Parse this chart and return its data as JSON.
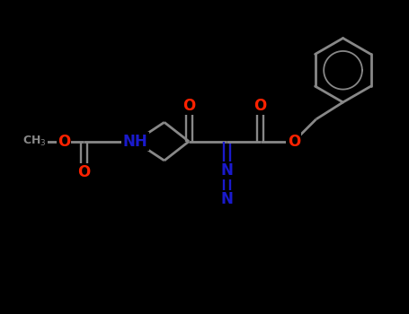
{
  "bg": "#000000",
  "bc": "#888888",
  "oc": "#ff2200",
  "nc": "#1a1acc",
  "lw": 2.0,
  "fs": 12,
  "fss": 9,
  "fig_w": 4.55,
  "fig_h": 3.5,
  "dpi": 100,
  "xlim": [
    0,
    9.1
  ],
  "ylim": [
    0,
    7
  ]
}
